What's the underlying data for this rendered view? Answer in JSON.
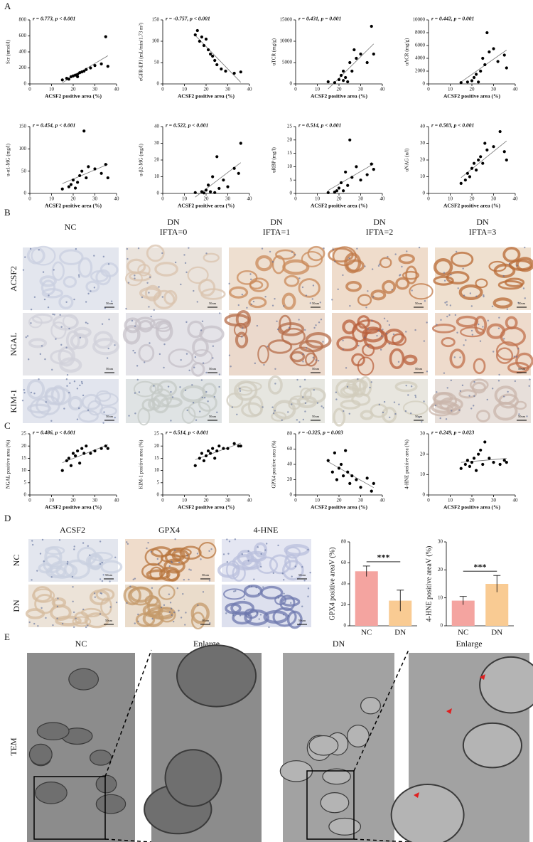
{
  "panel_labels": [
    "A",
    "B",
    "C",
    "D",
    "E"
  ],
  "chart_data": [
    {
      "type": "scatter",
      "annotation": "r = 0.773, p < 0.001",
      "x_label": "ACSF2 positive area (%)",
      "y_label": "Scr (umol/l)",
      "color": "#000000",
      "x": [
        15,
        17,
        18,
        19,
        20,
        21,
        22,
        22,
        23,
        24,
        25,
        26,
        28,
        30,
        33,
        35,
        36
      ],
      "values": [
        50,
        70,
        60,
        90,
        100,
        110,
        120,
        90,
        140,
        150,
        160,
        180,
        200,
        230,
        250,
        590,
        220
      ],
      "xlim": [
        0,
        40
      ],
      "xticks": [
        0,
        10,
        20,
        30,
        40
      ],
      "ylim": [
        0,
        800
      ],
      "yticks": [
        0,
        200,
        400,
        600,
        800
      ]
    },
    {
      "type": "scatter",
      "annotation": "r = -0.757, p < 0.001",
      "x_label": "ACSF2 positive area (%)",
      "y_label": "eGFR-EPI (mL/min/1.73 m²)",
      "color": "#000000",
      "x": [
        15,
        16,
        17,
        18,
        19,
        20,
        21,
        22,
        23,
        24,
        25,
        27,
        29,
        33,
        36
      ],
      "values": [
        115,
        125,
        100,
        110,
        90,
        105,
        80,
        70,
        65,
        55,
        45,
        35,
        30,
        25,
        28
      ],
      "xlim": [
        0,
        40
      ],
      "xticks": [
        0,
        10,
        20,
        30,
        40
      ],
      "ylim": [
        0,
        150
      ],
      "yticks": [
        0,
        50,
        100,
        150
      ]
    },
    {
      "type": "scatter",
      "annotation": "r = 0.431, p = 0.001",
      "x_label": "ACSF2 positive area (%)",
      "y_label": "uTCR (mg/g)",
      "color": "#000000",
      "x": [
        15,
        18,
        20,
        21,
        22,
        22,
        23,
        24,
        25,
        26,
        27,
        28,
        30,
        33,
        35,
        36
      ],
      "values": [
        500,
        300,
        1000,
        2000,
        800,
        3000,
        1500,
        500,
        5000,
        3000,
        8000,
        6000,
        7000,
        5000,
        13500,
        7000
      ],
      "xlim": [
        0,
        40
      ],
      "xticks": [
        0,
        10,
        20,
        30,
        40
      ],
      "ylim": [
        0,
        15000
      ],
      "yticks": [
        0,
        5000,
        10000,
        15000
      ]
    },
    {
      "type": "scatter",
      "annotation": "r = 0.442, p = 0.001",
      "x_label": "ACSF2 positive area (%)",
      "y_label": "uACR (mg/g)",
      "color": "#000000",
      "x": [
        15,
        18,
        20,
        21,
        22,
        23,
        24,
        25,
        26,
        27,
        28,
        30,
        32,
        35,
        36
      ],
      "values": [
        200,
        300,
        500,
        1000,
        1500,
        300,
        2000,
        4000,
        3000,
        8000,
        5000,
        5500,
        3500,
        4500,
        2500
      ],
      "xlim": [
        0,
        40
      ],
      "xticks": [
        0,
        10,
        20,
        30,
        40
      ],
      "ylim": [
        0,
        10000
      ],
      "yticks": [
        0,
        2000,
        4000,
        6000,
        8000,
        10000
      ]
    },
    {
      "type": "scatter",
      "annotation": "r = 0.454, p < 0.001",
      "x_label": "ACSF2 positive area (%)",
      "y_label": "u-α1-MG (mg/l)",
      "color": "#000000",
      "x": [
        15,
        18,
        19,
        20,
        21,
        22,
        23,
        24,
        25,
        26,
        27,
        30,
        33,
        35,
        36
      ],
      "values": [
        10,
        15,
        20,
        30,
        12,
        25,
        40,
        50,
        140,
        35,
        60,
        55,
        45,
        65,
        35
      ],
      "xlim": [
        0,
        40
      ],
      "xticks": [
        0,
        10,
        20,
        30,
        40
      ],
      "ylim": [
        0,
        150
      ],
      "yticks": [
        0,
        50,
        100,
        150
      ]
    },
    {
      "type": "scatter",
      "annotation": "r = 0.522, p < 0.001",
      "x_label": "ACSF2 positive area (%)",
      "y_label": "u-β2-MG (mg/l)",
      "color": "#000000",
      "x": [
        15,
        18,
        19,
        20,
        21,
        22,
        23,
        24,
        25,
        26,
        28,
        30,
        33,
        35,
        36
      ],
      "values": [
        0.5,
        1,
        0.3,
        2,
        5,
        1,
        10,
        0.5,
        22,
        3,
        8,
        4,
        15,
        12,
        30
      ],
      "xlim": [
        0,
        40
      ],
      "xticks": [
        0,
        10,
        20,
        30,
        40
      ],
      "ylim": [
        0,
        40
      ],
      "yticks": [
        0,
        10,
        20,
        30,
        40
      ]
    },
    {
      "type": "scatter",
      "annotation": "r = 0.514, p < 0.001",
      "x_label": "ACSF2 positive area (%)",
      "y_label": "uRBP (mg/l)",
      "color": "#000000",
      "x": [
        15,
        18,
        19,
        20,
        21,
        22,
        23,
        24,
        25,
        26,
        28,
        30,
        33,
        35,
        36
      ],
      "values": [
        0.3,
        0.5,
        1,
        2,
        4,
        1,
        8,
        3,
        20,
        6,
        10,
        5,
        7,
        11,
        9
      ],
      "xlim": [
        0,
        40
      ],
      "xticks": [
        0,
        10,
        20,
        30,
        40
      ],
      "ylim": [
        0,
        25
      ],
      "yticks": [
        0,
        5,
        10,
        15,
        20,
        25
      ]
    },
    {
      "type": "scatter",
      "annotation": "r = 0.583, p < 0.001",
      "x_label": "ACSF2 positive area (%)",
      "y_label": "uNAG (u/l)",
      "color": "#000000",
      "x": [
        15,
        17,
        18,
        19,
        20,
        21,
        22,
        23,
        24,
        25,
        26,
        27,
        30,
        33,
        35,
        36
      ],
      "values": [
        6,
        8,
        12,
        10,
        15,
        18,
        14,
        20,
        22,
        18,
        30,
        26,
        28,
        37,
        25,
        20
      ],
      "xlim": [
        0,
        40
      ],
      "xticks": [
        0,
        10,
        20,
        30,
        40
      ],
      "ylim": [
        0,
        40
      ],
      "yticks": [
        0,
        10,
        20,
        30,
        40
      ]
    },
    {
      "type": "scatter",
      "annotation": "r = 0.486, p < 0.001",
      "x_label": "ACSF2 positive area (%)",
      "y_label": "NGAL positive area (%)",
      "color": "#000000",
      "x": [
        15,
        17,
        18,
        19,
        20,
        21,
        22,
        23,
        24,
        25,
        26,
        28,
        30,
        33,
        35,
        36
      ],
      "values": [
        10,
        14,
        15,
        12,
        17,
        16,
        18,
        13,
        19,
        17,
        20,
        17,
        18,
        19,
        20,
        19
      ],
      "xlim": [
        0,
        40
      ],
      "xticks": [
        0,
        10,
        20,
        30,
        40
      ],
      "ylim": [
        0,
        25
      ],
      "yticks": [
        0,
        5,
        10,
        15,
        20,
        25
      ]
    },
    {
      "type": "scatter",
      "annotation": "r = 0.514, p < 0.001",
      "x_label": "ACSF2 positive area (%)",
      "y_label": "KIM-1 positive area (%)",
      "color": "#000000",
      "x": [
        15,
        17,
        18,
        19,
        20,
        21,
        22,
        23,
        24,
        25,
        26,
        28,
        30,
        33,
        35,
        36
      ],
      "values": [
        12,
        15,
        17,
        14,
        16,
        18,
        17,
        19,
        15,
        18,
        20,
        19,
        19,
        21,
        20,
        20
      ],
      "xlim": [
        0,
        40
      ],
      "xticks": [
        0,
        10,
        20,
        30,
        40
      ],
      "ylim": [
        0,
        25
      ],
      "yticks": [
        0,
        5,
        10,
        15,
        20,
        25
      ]
    },
    {
      "type": "scatter",
      "annotation": "r = -0.325, p = 0.003",
      "x_label": "ACSF2 positive area (%)",
      "y_label": "GPX4 positive area (%)",
      "color": "#000000",
      "x": [
        15,
        17,
        18,
        19,
        20,
        21,
        22,
        23,
        24,
        25,
        26,
        28,
        30,
        33,
        35,
        36
      ],
      "values": [
        45,
        30,
        55,
        20,
        35,
        40,
        25,
        58,
        30,
        15,
        25,
        20,
        10,
        22,
        5,
        15
      ],
      "xlim": [
        0,
        40
      ],
      "xticks": [
        0,
        10,
        20,
        30,
        40
      ],
      "ylim": [
        0,
        80
      ],
      "yticks": [
        0,
        20,
        40,
        60,
        80
      ]
    },
    {
      "type": "scatter",
      "annotation": "r = 0.249, p = 0.023",
      "x_label": "ACSF2 positive area (%)",
      "y_label": "4-HNE positive area (%)",
      "color": "#000000",
      "x": [
        15,
        17,
        18,
        19,
        20,
        21,
        22,
        23,
        24,
        25,
        26,
        28,
        30,
        33,
        35,
        36
      ],
      "values": [
        13,
        15,
        17,
        14,
        16,
        18,
        12,
        20,
        22,
        15,
        26,
        18,
        16,
        15,
        17,
        16
      ],
      "xlim": [
        0,
        40
      ],
      "xticks": [
        0,
        10,
        20,
        30,
        40
      ],
      "ylim": [
        0,
        30
      ],
      "yticks": [
        0,
        10,
        20,
        30
      ]
    },
    {
      "type": "bar",
      "y_label": "GPX4 positive areaV (%)",
      "annotation": "***",
      "categories": [
        "NC",
        "DN"
      ],
      "values": [
        52,
        24
      ],
      "errors": [
        5,
        10
      ],
      "colors": [
        "#f4a4a0",
        "#f9cb93"
      ],
      "ylim": [
        0,
        80
      ],
      "yticks": [
        0,
        20,
        40,
        60,
        80
      ]
    },
    {
      "type": "bar",
      "y_label": "4-HNE positive areaV (%)",
      "annotation": "***",
      "categories": [
        "NC",
        "DN"
      ],
      "values": [
        9,
        15
      ],
      "errors": [
        1.5,
        3
      ],
      "colors": [
        "#f4a4a0",
        "#f9cb93"
      ],
      "ylim": [
        0,
        30
      ],
      "yticks": [
        0,
        10,
        20,
        30
      ]
    }
  ],
  "micrographs_b": {
    "columns": [
      [
        "NC"
      ],
      [
        "DN",
        "IFTA=0"
      ],
      [
        "DN",
        "IFTA=1"
      ],
      [
        "DN",
        "IFTA=2"
      ],
      [
        "DN",
        "IFTA=3"
      ]
    ],
    "rows": [
      "ACSF2",
      "NGAL",
      "KIM-1"
    ],
    "scale_label": "50um"
  },
  "micrographs_d": {
    "columns": [
      "ACSF2",
      "GPX4",
      "4-HNE"
    ],
    "rows": [
      "NC",
      "DN"
    ],
    "scale_label": "50um"
  },
  "tem": {
    "columns": [
      "NC",
      "Enlarge",
      "DN",
      "Enlarge"
    ],
    "row": "TEM"
  }
}
